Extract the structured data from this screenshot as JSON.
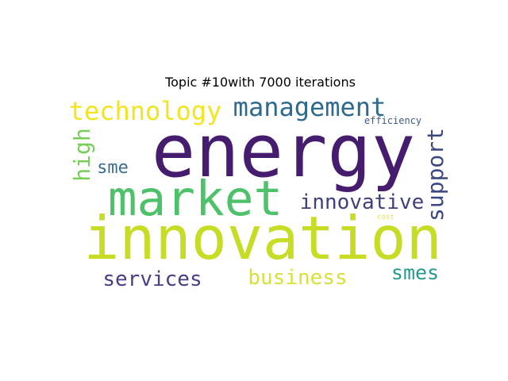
{
  "title": "Topic #10with 7000 iterations",
  "words": [
    {
      "text": "energy",
      "color": "#451c6e",
      "orientation": "horizontal"
    },
    {
      "text": "innovation",
      "color": "#c6dc25",
      "orientation": "horizontal"
    },
    {
      "text": "market",
      "color": "#4dc26a",
      "orientation": "horizontal"
    },
    {
      "text": "management",
      "color": "#2e6a8e",
      "orientation": "horizontal"
    },
    {
      "text": "technology",
      "color": "#f2e41e",
      "orientation": "horizontal"
    },
    {
      "text": "business",
      "color": "#d8e03a",
      "orientation": "horizontal"
    },
    {
      "text": "services",
      "color": "#473e86",
      "orientation": "horizontal"
    },
    {
      "text": "innovative",
      "color": "#3f3f7e",
      "orientation": "horizontal"
    },
    {
      "text": "support",
      "color": "#3c4680",
      "orientation": "vertical"
    },
    {
      "text": "high",
      "color": "#78cd5a",
      "orientation": "vertical"
    },
    {
      "text": "sme",
      "color": "#3b6d8d",
      "orientation": "horizontal"
    },
    {
      "text": "smes",
      "color": "#269a8e",
      "orientation": "horizontal"
    },
    {
      "text": "efficiency",
      "color": "#3f5a88",
      "orientation": "horizontal"
    },
    {
      "text": "cost",
      "color": "#f0e34a",
      "orientation": "horizontal"
    }
  ]
}
